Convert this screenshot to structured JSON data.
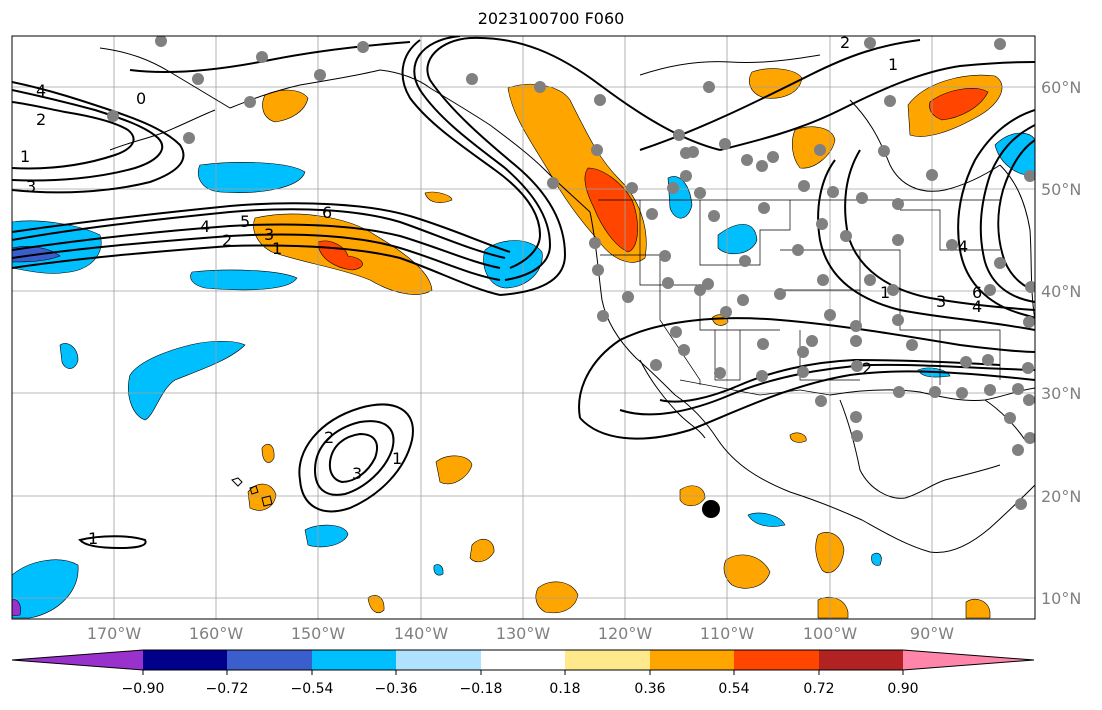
{
  "title": "2023100700 F060",
  "latitude_labels": [
    "60°N",
    "50°N",
    "40°N",
    "30°N",
    "20°N",
    "10°N"
  ],
  "longitude_labels": [
    "170°W",
    "160°W",
    "150°W",
    "140°W",
    "130°W",
    "120°W",
    "110°W",
    "100°W",
    "90°W"
  ],
  "colorbar": {
    "tick_labels": [
      "−0.90",
      "−0.72",
      "−0.54",
      "−0.36",
      "−0.18",
      "0.18",
      "0.36",
      "0.54",
      "0.72",
      "0.90"
    ],
    "colors": [
      "#9932cc",
      "#00008b",
      "#3a5fcd",
      "#00bfff",
      "#b0e2ff",
      "#ffffff",
      "#ffe98a",
      "#ffa500",
      "#ff4500",
      "#b22222",
      "#ff85ab"
    ]
  },
  "contour_labels": [
    {
      "text": "4"
    },
    {
      "text": "2"
    },
    {
      "text": "1"
    },
    {
      "text": "3"
    },
    {
      "text": "0"
    },
    {
      "text": "4"
    },
    {
      "text": "5"
    },
    {
      "text": "6"
    },
    {
      "text": "2"
    },
    {
      "text": "3"
    },
    {
      "text": "1"
    },
    {
      "text": "2"
    },
    {
      "text": "3"
    },
    {
      "text": "1"
    },
    {
      "text": "1"
    },
    {
      "text": "2"
    },
    {
      "text": "1"
    },
    {
      "text": "1"
    },
    {
      "text": "3"
    },
    {
      "text": "6"
    },
    {
      "text": "4"
    },
    {
      "text": "4"
    },
    {
      "text": "2"
    }
  ]
}
